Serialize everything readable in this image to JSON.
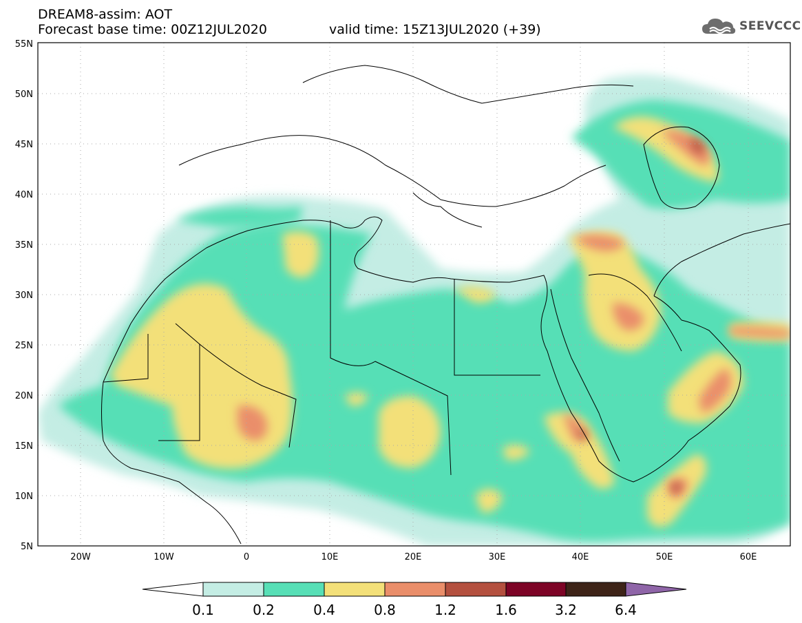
{
  "header": {
    "title": "DREAM8-assim: AOT",
    "base_time": "Forecast base time: 00Z12JUL2020",
    "valid_time": "valid time: 15Z13JUL2020 (+39)"
  },
  "logo": {
    "icon": "cloud-icon",
    "text": "SEEVCCC"
  },
  "map": {
    "lat_labels": [
      "55N",
      "50N",
      "45N",
      "40N",
      "35N",
      "30N",
      "25N",
      "20N",
      "15N",
      "10N",
      "5N"
    ],
    "lon_labels": [
      "20W",
      "10W",
      "0",
      "10E",
      "20E",
      "30E",
      "40E",
      "50E",
      "60E"
    ],
    "lon_range": [
      -25,
      65
    ],
    "lat_range": [
      5,
      55
    ]
  },
  "colorbar": {
    "levels": [
      "0.1",
      "0.2",
      "0.4",
      "0.8",
      "1.2",
      "1.6",
      "3.2",
      "6.4"
    ],
    "colors": {
      "below": "#ffffff",
      "c1": "#c4ede4",
      "c2": "#57dfb6",
      "c3": "#f3e079",
      "c4": "#ea8e6a",
      "c5": "#b4503f",
      "c6": "#7d0426",
      "c7": "#3e2418",
      "above": "#8f65a8"
    }
  }
}
